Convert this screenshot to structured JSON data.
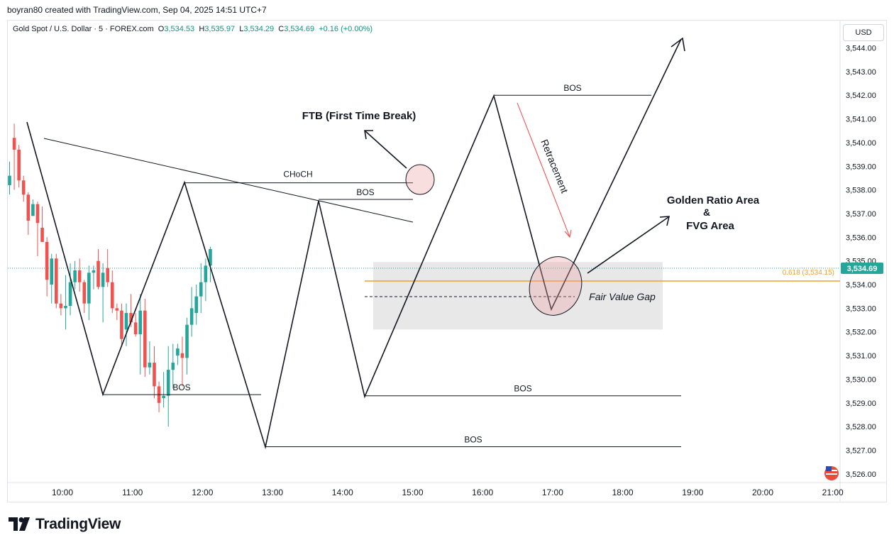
{
  "credit": "boyran80 created with TradingView.com, Sep 04, 2025 14:51 UTC+7",
  "legend": {
    "symbol": "Gold Spot / U.S. Dollar · 5 · FOREX.com",
    "o_label": "O",
    "o": "3,534.53",
    "h_label": "H",
    "h": "3,535.97",
    "l_label": "L",
    "l": "3,534.29",
    "c_label": "C",
    "c": "3,534.69",
    "change": "+0.16 (+0.00%)"
  },
  "currency": "USD",
  "last_price_label": "3,534.69",
  "fib_label": "0.618 (3,534.15)",
  "brand": "TradingView",
  "colors": {
    "up": "#26a69a",
    "down": "#ef5350",
    "fib": "#f0a030",
    "fvg": "#e6e6e6"
  },
  "chart_data": {
    "type": "candlestick",
    "symbol": "Gold Spot / U.S. Dollar",
    "timeframe": "5",
    "y_axis": {
      "range": [
        3525.7,
        3544.3
      ],
      "ticks": [
        "3,526.00",
        "3,527.00",
        "3,528.00",
        "3,529.00",
        "3,530.00",
        "3,531.00",
        "3,532.00",
        "3,533.00",
        "3,534.00",
        "3,535.00",
        "3,536.00",
        "3,537.00",
        "3,538.00",
        "3,539.00",
        "3,540.00",
        "3,541.00",
        "3,542.00",
        "3,543.00",
        "3,544.00"
      ]
    },
    "x_axis": {
      "ticks": [
        "10:00",
        "11:00",
        "12:00",
        "13:00",
        "14:00",
        "15:00",
        "16:00",
        "17:00",
        "18:00",
        "19:00",
        "20:00",
        "21:00"
      ]
    },
    "candles": [
      [
        3538.2,
        3539.2,
        3537.8,
        3538.6
      ],
      [
        3540.2,
        3540.8,
        3538.0,
        3539.7
      ],
      [
        3539.7,
        3539.9,
        3538.1,
        3538.4
      ],
      [
        3538.4,
        3538.6,
        3537.5,
        3537.8
      ],
      [
        3537.8,
        3537.9,
        3536.1,
        3536.7
      ],
      [
        3536.9,
        3537.6,
        3536.9,
        3537.4
      ],
      [
        3537.4,
        3537.5,
        3535.2,
        3536.6
      ],
      [
        3536.4,
        3537.3,
        3535.8,
        3535.8
      ],
      [
        3535.8,
        3536.0,
        3533.5,
        3534.2
      ],
      [
        3534.0,
        3535.3,
        3533.2,
        3535.1
      ],
      [
        3535.1,
        3535.3,
        3533.0,
        3533.2
      ],
      [
        3533.2,
        3533.6,
        3532.7,
        3533.0
      ],
      [
        3533.0,
        3534.4,
        3532.1,
        3533.1
      ],
      [
        3533.1,
        3534.9,
        3532.7,
        3534.1
      ],
      [
        3534.1,
        3535.0,
        3533.8,
        3534.6
      ],
      [
        3534.6,
        3535.1,
        3533.7,
        3534.1
      ],
      [
        3534.1,
        3534.2,
        3532.8,
        3533.2
      ],
      [
        3533.2,
        3534.8,
        3532.5,
        3534.5
      ],
      [
        3534.5,
        3534.8,
        3533.8,
        3534.6
      ],
      [
        3535.0,
        3535.5,
        3533.8,
        3533.9
      ],
      [
        3533.9,
        3534.9,
        3532.4,
        3534.5
      ],
      [
        3534.7,
        3535.5,
        3533.9,
        3534.1
      ],
      [
        3534.1,
        3534.6,
        3532.8,
        3533.0
      ],
      [
        3533.0,
        3533.2,
        3532.5,
        3532.9
      ],
      [
        3532.9,
        3533.2,
        3531.4,
        3531.7
      ],
      [
        3532.1,
        3533.2,
        3531.4,
        3532.8
      ],
      [
        3532.8,
        3533.6,
        3532.2,
        3532.4
      ],
      [
        3532.4,
        3532.8,
        3531.8,
        3531.9
      ],
      [
        3531.9,
        3533.6,
        3530.2,
        3532.9
      ],
      [
        3532.9,
        3533.4,
        3530.1,
        3530.5
      ],
      [
        3530.5,
        3531.6,
        3530.2,
        3530.7
      ],
      [
        3530.7,
        3531.4,
        3529.2,
        3529.7
      ],
      [
        3529.7,
        3529.9,
        3528.6,
        3529.0
      ],
      [
        3529.2,
        3530.3,
        3528.8,
        3529.3
      ],
      [
        3529.3,
        3531.4,
        3528.0,
        3530.4
      ],
      [
        3530.4,
        3531.5,
        3529.6,
        3530.7
      ],
      [
        3531.0,
        3531.5,
        3530.6,
        3531.3
      ],
      [
        3531.1,
        3531.8,
        3529.7,
        3530.9
      ],
      [
        3530.9,
        3532.6,
        3530.2,
        3532.3
      ],
      [
        3532.3,
        3533.9,
        3531.8,
        3533.0
      ],
      [
        3532.8,
        3534.0,
        3532.3,
        3533.5
      ],
      [
        3533.5,
        3534.9,
        3532.8,
        3534.1
      ],
      [
        3534.1,
        3535.1,
        3533.3,
        3534.8
      ],
      [
        3534.8,
        3535.6,
        3534.1,
        3535.5
      ]
    ],
    "lines": {
      "choch": {
        "label": "CHoCH",
        "level": 3538.3
      },
      "bos_levels": [
        {
          "label": "BOS",
          "level": 3529.35
        },
        {
          "label": "BOS",
          "level": 3537.6
        },
        {
          "label": "BOS",
          "level": 3542.0
        },
        {
          "label": "BOS",
          "level": 3529.3
        },
        {
          "label": "BOS",
          "level": 3527.15
        }
      ],
      "fib_0618": 3534.15,
      "last_price": 3534.69
    },
    "zones": {
      "fvg": {
        "label": "Fair Value Gap",
        "from": 3532.1,
        "to": 3534.95
      }
    },
    "annotations": {
      "ftb": "FTB (First Time Break)",
      "retracement": "Retracement",
      "golden_line1": "Golden Ratio Area",
      "golden_line2": "&",
      "golden_line3": "FVG Area"
    }
  }
}
